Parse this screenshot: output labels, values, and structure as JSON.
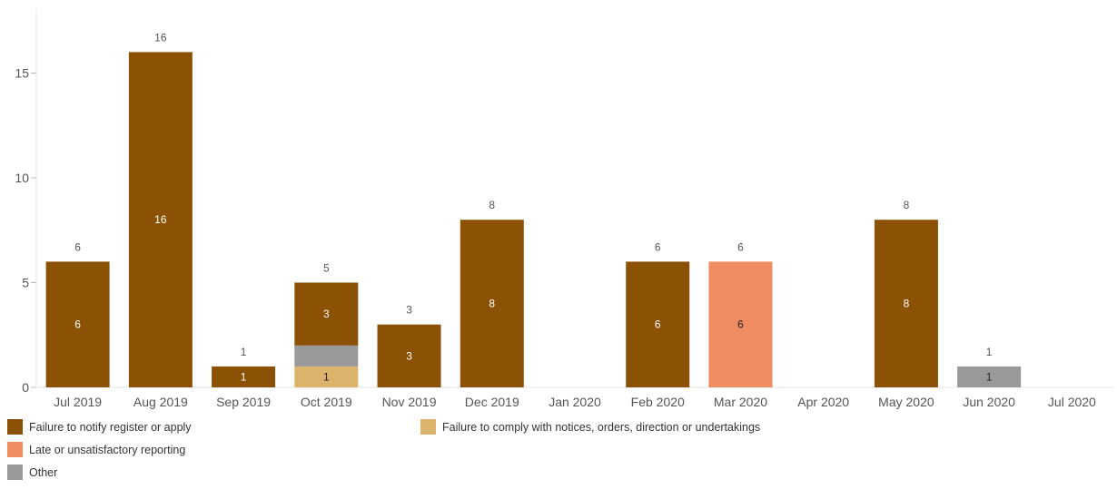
{
  "chart_data": {
    "type": "bar",
    "stacked": true,
    "categories": [
      "Jul 2019",
      "Aug 2019",
      "Sep 2019",
      "Oct 2019",
      "Nov 2019",
      "Dec 2019",
      "Jan 2020",
      "Feb 2020",
      "Mar 2020",
      "Apr 2020",
      "May 2020",
      "Jun 2020",
      "Jul 2020"
    ],
    "series": [
      {
        "name": "Failure to comply with notices, orders, direction or undertakings",
        "color": "#dcb36b",
        "label_color": "#222222",
        "values": [
          0,
          0,
          0,
          1,
          0,
          0,
          0,
          0,
          0,
          0,
          0,
          0,
          0
        ]
      },
      {
        "name": "Other",
        "color": "#999999",
        "label_color": "#222222",
        "values": [
          0,
          0,
          0,
          1,
          0,
          0,
          0,
          0,
          0,
          0,
          0,
          1,
          0
        ]
      },
      {
        "name": "Failure to notify register or apply",
        "color": "#8b5206",
        "label_color": "#ffffff",
        "values": [
          6,
          16,
          1,
          3,
          3,
          8,
          0,
          6,
          0,
          0,
          8,
          0,
          0
        ]
      },
      {
        "name": "Late or unsatisfactory reporting",
        "color": "#f08c62",
        "label_color": "#222222",
        "values": [
          0,
          0,
          0,
          0,
          0,
          0,
          0,
          0,
          6,
          0,
          0,
          0,
          0
        ]
      }
    ],
    "totals": [
      6,
      16,
      1,
      5,
      3,
      8,
      null,
      6,
      6,
      null,
      8,
      1,
      null
    ],
    "segment_labels": [
      {
        "category": 0,
        "series": 2,
        "text": "6"
      },
      {
        "category": 1,
        "series": 2,
        "text": "16"
      },
      {
        "category": 2,
        "series": 2,
        "text": "1"
      },
      {
        "category": 3,
        "series": 0,
        "text": "1"
      },
      {
        "category": 3,
        "series": 2,
        "text": "3"
      },
      {
        "category": 4,
        "series": 2,
        "text": "3"
      },
      {
        "category": 5,
        "series": 2,
        "text": "8"
      },
      {
        "category": 7,
        "series": 2,
        "text": "6"
      },
      {
        "category": 8,
        "series": 3,
        "text": "6"
      },
      {
        "category": 10,
        "series": 2,
        "text": "8"
      },
      {
        "category": 11,
        "series": 1,
        "text": "1"
      }
    ],
    "y_ticks": [
      0,
      5,
      10,
      15
    ],
    "ylim": [
      0,
      18
    ],
    "grid": false,
    "legend": {
      "placement": "bottom-left",
      "order": [
        2,
        0,
        3,
        1
      ]
    }
  }
}
